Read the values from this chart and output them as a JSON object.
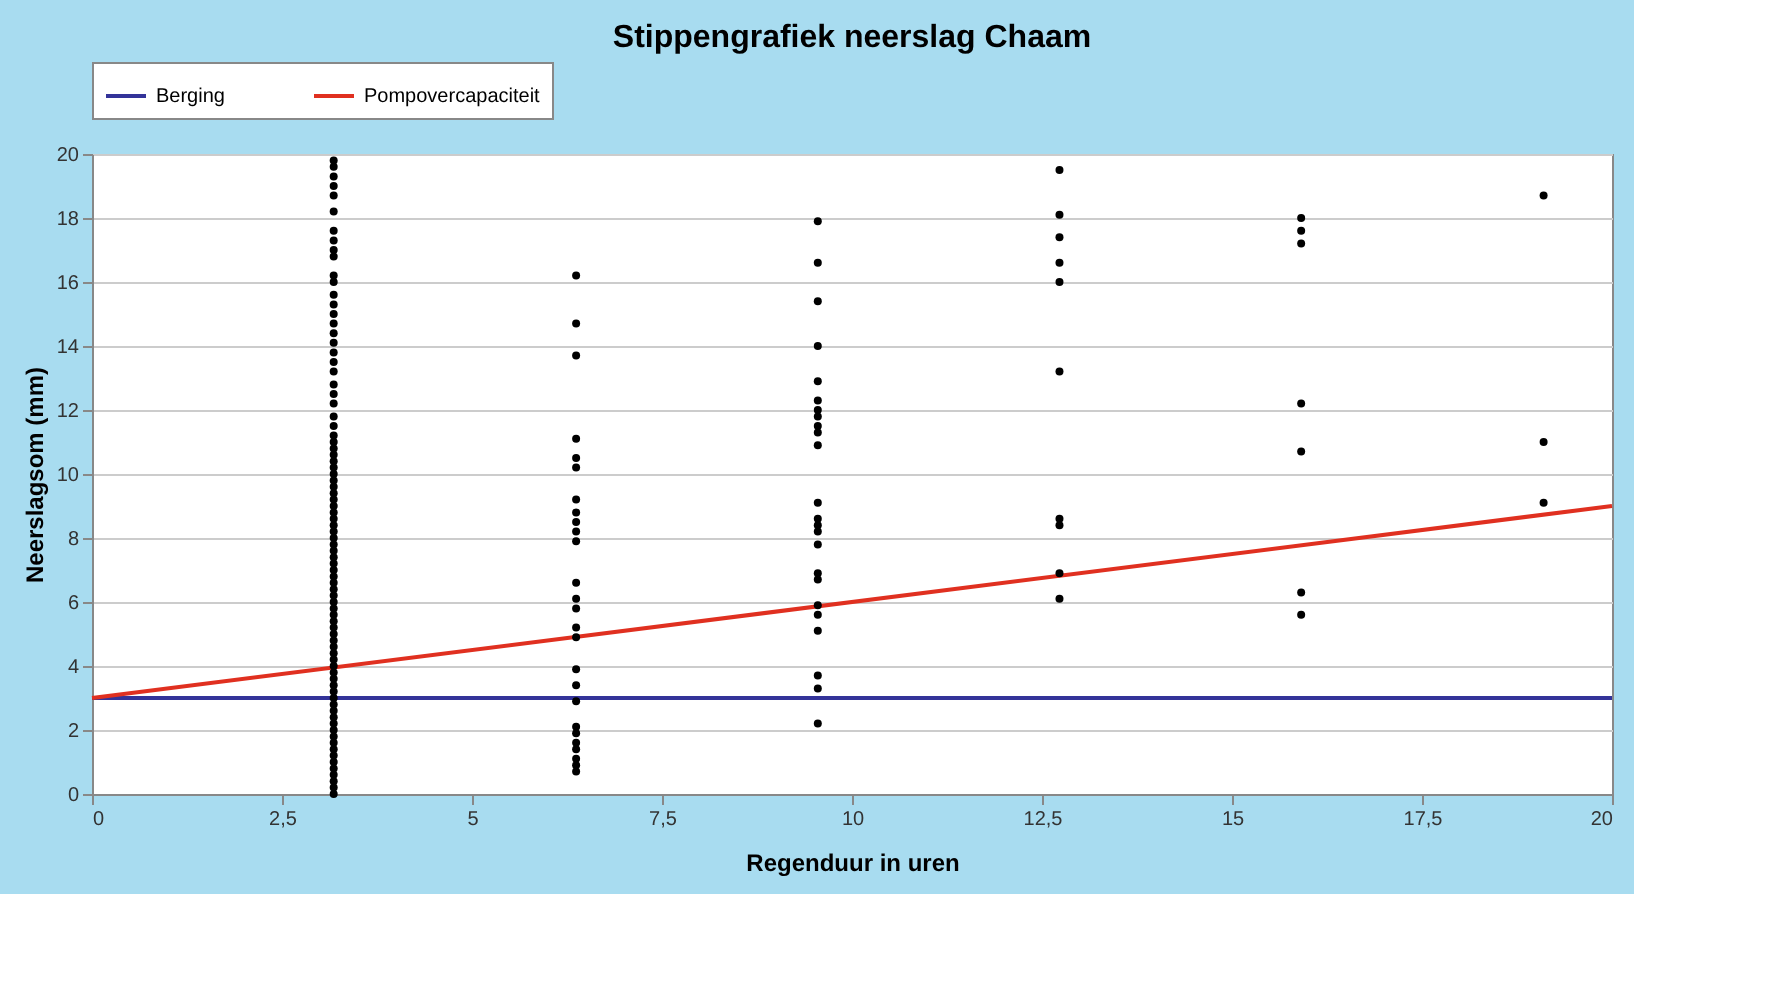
{
  "chart_data": {
    "type": "scatter",
    "title": "Stippengrafiek neerslag Chaam",
    "xlabel": "Regenduur in uren",
    "ylabel": "Neerslagsom (mm)",
    "xlim": [
      0,
      20
    ],
    "xticks": [
      0,
      {
        "value": 2.5,
        "label": "2,5"
      },
      5,
      {
        "value": 7.5,
        "label": "7,5"
      },
      10,
      {
        "value": 12.5,
        "label": "12,5"
      },
      15,
      {
        "value": 17.5,
        "label": "17,5"
      },
      20
    ],
    "ylim": [
      0,
      20
    ],
    "yticks": [
      0,
      2,
      4,
      6,
      8,
      10,
      12,
      14,
      16,
      18,
      20
    ],
    "grid": "y",
    "legend": "top left",
    "series": [
      {
        "type": "line",
        "name": "Berging",
        "color": "#333399",
        "x": [
          0,
          20
        ],
        "values": [
          3,
          3
        ],
        "line_style": "solid"
      },
      {
        "type": "line",
        "name": "Pompovercapaciteit",
        "color": "#e03020",
        "x": [
          0,
          20
        ],
        "values": [
          3,
          9
        ],
        "line_style": "solid"
      },
      {
        "color": "#000000",
        "marker": "circle",
        "x": [
          3.18,
          3.18,
          3.18,
          3.18,
          3.18,
          3.18,
          3.18,
          3.18,
          3.18,
          3.18,
          3.18,
          3.18,
          3.18,
          3.18,
          3.18,
          3.18,
          3.18,
          3.18,
          3.18,
          3.18,
          3.18,
          3.18,
          3.18,
          3.18,
          3.18,
          3.18,
          3.18,
          3.18,
          3.18,
          3.18,
          3.18,
          3.18,
          3.18,
          3.18,
          3.18,
          3.18,
          3.18,
          3.18,
          3.18,
          3.18,
          3.18,
          3.18,
          3.18,
          3.18,
          3.18,
          3.18,
          3.18,
          3.18,
          3.18,
          3.18,
          3.18,
          3.18,
          3.18,
          3.18,
          3.18,
          3.18,
          3.18,
          3.18,
          3.18,
          3.18,
          3.18,
          3.18,
          3.18,
          3.18,
          3.18,
          3.18,
          3.18,
          3.18,
          3.18,
          3.18,
          3.18,
          3.18,
          3.18,
          3.18,
          3.18,
          3.18,
          3.18,
          3.18,
          3.18,
          3.18,
          3.18,
          3.18,
          3.18,
          6.37,
          6.37,
          6.37,
          6.37,
          6.37,
          6.37,
          6.37,
          6.37,
          6.37,
          6.37,
          6.37,
          6.37,
          6.37,
          6.37,
          6.37,
          6.37,
          6.37,
          6.37,
          6.37,
          6.37,
          6.37,
          6.37,
          6.37,
          6.37,
          6.37,
          6.37,
          9.55,
          9.55,
          9.55,
          9.55,
          9.55,
          9.55,
          9.55,
          9.55,
          9.55,
          9.55,
          9.55,
          9.55,
          9.55,
          9.55,
          9.55,
          9.55,
          9.55,
          9.55,
          9.55,
          9.55,
          9.55,
          9.55,
          9.55,
          9.55,
          12.73,
          12.73,
          12.73,
          12.73,
          12.73,
          12.73,
          12.73,
          12.73,
          12.73,
          12.73,
          15.91,
          15.91,
          15.91,
          15.91,
          15.91,
          15.91,
          15.91,
          19.1,
          19.1,
          19.1
        ],
        "values": [
          0,
          0.2,
          0.4,
          0.6,
          0.8,
          1,
          1.2,
          1.4,
          1.6,
          1.8,
          2,
          2.2,
          2.4,
          2.6,
          2.8,
          3,
          3.2,
          3.4,
          3.6,
          3.8,
          4,
          4.2,
          4.4,
          4.6,
          4.8,
          5,
          5.2,
          5.4,
          5.6,
          5.8,
          6,
          6.2,
          6.4,
          6.6,
          6.8,
          7,
          7.2,
          7.4,
          7.6,
          7.8,
          8,
          8.2,
          8.4,
          8.6,
          8.8,
          9,
          9.2,
          9.4,
          9.6,
          9.8,
          10,
          10.2,
          10.4,
          10.6,
          10.8,
          11,
          11.2,
          11.5,
          11.8,
          12.2,
          12.5,
          12.8,
          13.2,
          13.5,
          13.8,
          14.1,
          14.4,
          14.7,
          15,
          15.3,
          15.6,
          16,
          16.2,
          16.8,
          17,
          17.3,
          17.6,
          18.2,
          18.7,
          19,
          19.3,
          19.6,
          19.8,
          16.2,
          14.7,
          13.7,
          11.1,
          10.5,
          10.2,
          9.2,
          8.8,
          8.5,
          8.2,
          7.9,
          6.6,
          6.1,
          5.8,
          5.2,
          4.9,
          3.9,
          3.4,
          2.9,
          2.1,
          1.9,
          1.6,
          1.4,
          1.1,
          0.9,
          0.7,
          17.9,
          16.6,
          15.4,
          14,
          12.9,
          12.3,
          12,
          11.8,
          11.5,
          11.3,
          10.9,
          9.1,
          8.6,
          8.4,
          8.2,
          7.8,
          6.9,
          6.7,
          5.9,
          5.6,
          5.1,
          3.7,
          3.3,
          2.2,
          19.5,
          18.1,
          17.4,
          16.6,
          16,
          13.2,
          8.6,
          8.4,
          6.9,
          6.1,
          18,
          17.6,
          17.2,
          12.2,
          10.7,
          6.3,
          5.6,
          18.7,
          11,
          9.1
        ]
      }
    ]
  }
}
